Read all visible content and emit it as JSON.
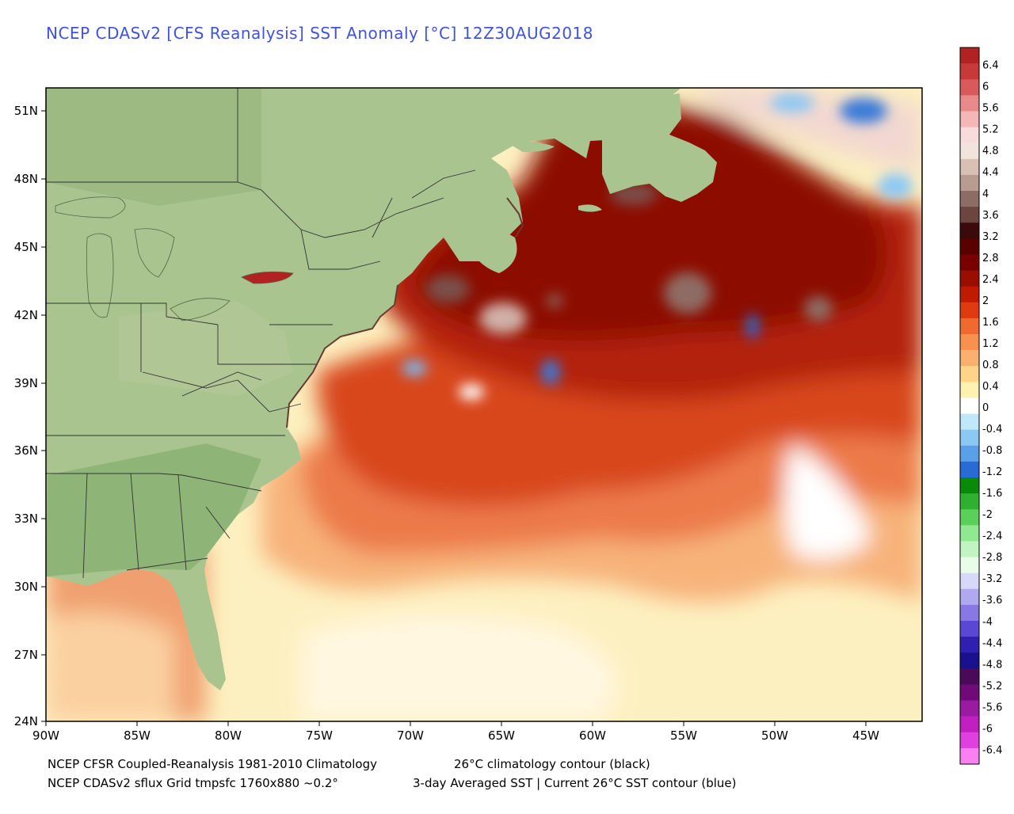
{
  "title": "NCEP CDASv2 [CFS Reanalysis] SST Anomaly [°C] 12Z30AUG2018",
  "footer": {
    "line1_left": "NCEP CFSR Coupled-Reanalysis 1981-2010 Climatology",
    "line1_right": "26°C climatology contour (black)",
    "line2_left": "NCEP CDASv2 sflux Grid tmpsfc 1760x880 ~0.2°",
    "line2_right": "3-day Averaged SST | Current 26°C SST contour (blue)"
  },
  "lat_labels": [
    "51N",
    "48N",
    "45N",
    "42N",
    "39N",
    "36N",
    "33N",
    "30N",
    "27N",
    "24N"
  ],
  "lon_labels": [
    "90W",
    "85W",
    "80W",
    "75W",
    "70W",
    "65W",
    "60W",
    "55W",
    "50W",
    "45W"
  ],
  "colorbar": {
    "labels": [
      "6.4",
      "6",
      "5.6",
      "5.2",
      "4.8",
      "4.4",
      "4",
      "3.6",
      "3.2",
      "2.8",
      "2.4",
      "2",
      "1.6",
      "1.2",
      "0.8",
      "0.4",
      "0",
      "-0.4",
      "-0.8",
      "-1.2",
      "-1.6",
      "-2",
      "-2.4",
      "-2.8",
      "-3.2",
      "-3.6",
      "-4",
      "-4.4",
      "-4.8",
      "-5.2",
      "-5.6",
      "-6",
      "-6.4"
    ],
    "colors": [
      "#b22222",
      "#c83a3a",
      "#d85a5a",
      "#e88a8a",
      "#f4b6b6",
      "#f8dcdc",
      "#f0e4dc",
      "#d8c0b4",
      "#b89c90",
      "#8c6c64",
      "#6c4440",
      "#3c0a0a",
      "#5a0000",
      "#7a0000",
      "#9a0e00",
      "#c01a00",
      "#e03a10",
      "#f06a30",
      "#f89050",
      "#fcb070",
      "#fdd48a",
      "#fff2b0",
      "#ffffff",
      "#c0e8f8",
      "#8cc8f4",
      "#5aa0e8",
      "#2a6ad4",
      "#0a8a0a",
      "#30b030",
      "#5ad05a",
      "#90e890",
      "#c0f4c0",
      "#e8fce8",
      "#d8d8f8",
      "#b0a8f0",
      "#8878e4",
      "#5a48d4",
      "#3020b0",
      "#18108c",
      "#4a0a5a",
      "#700a78",
      "#9a1aa0",
      "#c020c0",
      "#e040e0",
      "#f880f0"
    ]
  },
  "colors": {
    "title": "#3f52e0",
    "land": "#a9c48f",
    "ocean_base": "#fbe3b0"
  }
}
